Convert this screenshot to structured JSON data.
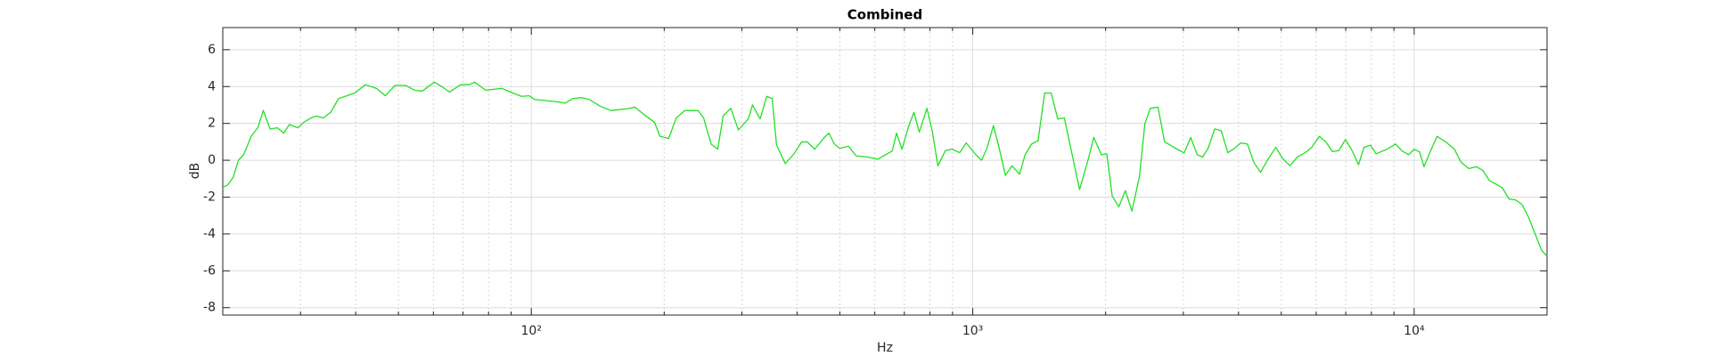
{
  "chart_data": {
    "type": "line",
    "title": "Combined",
    "xlabel": "Hz",
    "ylabel": "dB",
    "xscale": "log",
    "grid": true,
    "color": "#22e022",
    "xlim": [
      20,
      20000
    ],
    "ylim": [
      -8.4,
      7.2
    ],
    "xticks": [
      {
        "value": 100,
        "label": "10²"
      },
      {
        "value": 1000,
        "label": "10³"
      },
      {
        "value": 10000,
        "label": "10⁴"
      }
    ],
    "xminorticks": [
      30,
      40,
      50,
      60,
      70,
      80,
      90,
      200,
      300,
      400,
      500,
      600,
      700,
      800,
      900,
      2000,
      3000,
      4000,
      5000,
      6000,
      7000,
      8000,
      9000
    ],
    "yticks": [
      -8,
      -6,
      -4,
      -2,
      0,
      2,
      4,
      6
    ],
    "x": [
      20,
      20.5,
      21.1,
      21.7,
      22.3,
      23.2,
      24.0,
      24.7,
      25.6,
      26.6,
      27.5,
      28.3,
      29.6,
      30.5,
      31.7,
      32.6,
      33.8,
      35.1,
      36.6,
      38.2,
      39.8,
      42.1,
      44.6,
      46.7,
      49.1,
      52.0,
      54.4,
      56.6,
      60.3,
      62.7,
      65.3,
      69.1,
      72.3,
      74.4,
      78.8,
      85.8,
      90.8,
      95.0,
      98.9,
      101.7,
      107.7,
      114.0,
      119.3,
      124.1,
      129.9,
      135.2,
      143.1,
      151.4,
      165.0,
      171.7,
      179.6,
      190.1,
      195.6,
      204.7,
      213.0,
      222.9,
      238.7,
      245.6,
      255.5,
      264.4,
      272.0,
      283.1,
      294.5,
      310.0,
      317.1,
      329.9,
      341.4,
      351.3,
      359.4,
      376.1,
      393.6,
      409.6,
      421.4,
      438.5,
      458.9,
      472.2,
      485.8,
      499.8,
      523.0,
      544.3,
      576.2,
      610.0,
      656.9,
      672.0,
      691.3,
      715.2,
      735.9,
      756.9,
      787.6,
      810.3,
      833.7,
      867.6,
      897.6,
      934.1,
      966.5,
      1017,
      1047,
      1077,
      1114,
      1147,
      1186,
      1227,
      1277,
      1314,
      1359,
      1406,
      1455,
      1506,
      1558,
      1613,
      1688,
      1746,
      1827,
      1880,
      1956,
      2013,
      2070,
      2142,
      2217,
      2294,
      2386,
      2455,
      2526,
      2629,
      2720,
      2880,
      3013,
      3118,
      3226,
      3319,
      3414,
      3533,
      3656,
      3783,
      3892,
      4050,
      4191,
      4335,
      4486,
      4668,
      4858,
      5026,
      5230,
      5442,
      5663,
      5860,
      6099,
      6310,
      6528,
      6754,
      6988,
      7232,
      7482,
      7697,
      7964,
      8198,
      8677,
      9078,
      9393,
      9720,
      10000,
      10290,
      10525,
      10890,
      11270,
      11790,
      12340,
      12770,
      13290,
      13830,
      14310,
      14810,
      15320,
      15850,
      16400,
      16970,
      17560,
      18170,
      18800,
      19450,
      20000
    ],
    "values": [
      -1.47,
      -1.35,
      -0.94,
      0,
      0.3,
      1.3,
      1.76,
      2.7,
      1.7,
      1.76,
      1.47,
      1.94,
      1.76,
      2.06,
      2.3,
      2.4,
      2.3,
      2.6,
      3.35,
      3.5,
      3.65,
      4.1,
      3.9,
      3.5,
      4.06,
      4.06,
      3.8,
      3.75,
      4.24,
      4.0,
      3.7,
      4.1,
      4.1,
      4.24,
      3.8,
      3.9,
      3.65,
      3.47,
      3.5,
      3.3,
      3.24,
      3.18,
      3.1,
      3.35,
      3.4,
      3.3,
      2.94,
      2.7,
      2.8,
      2.88,
      2.5,
      2.06,
      1.3,
      1.18,
      2.3,
      2.7,
      2.7,
      2.3,
      0.88,
      0.6,
      2.4,
      2.82,
      1.65,
      2.24,
      3.0,
      2.24,
      3.47,
      3.35,
      0.82,
      -0.18,
      0.35,
      1.0,
      1.0,
      0.6,
      1.18,
      1.47,
      0.88,
      0.65,
      0.76,
      0.24,
      0.18,
      0.06,
      0.5,
      1.47,
      0.6,
      1.82,
      2.6,
      1.53,
      2.82,
      1.53,
      -0.3,
      0.53,
      0.6,
      0.41,
      0.94,
      0.3,
      0,
      0.65,
      1.88,
      0.7,
      -0.82,
      -0.3,
      -0.76,
      0.3,
      0.88,
      1.06,
      3.65,
      3.65,
      2.24,
      2.3,
      0.06,
      -1.59,
      0.06,
      1.24,
      0.3,
      0.35,
      -1.94,
      -2.53,
      -1.65,
      -2.76,
      -0.88,
      2.0,
      2.82,
      2.88,
      1.0,
      0.65,
      0.4,
      1.24,
      0.3,
      0.18,
      0.65,
      1.7,
      1.6,
      0.41,
      0.6,
      0.94,
      0.88,
      -0.12,
      -0.65,
      0.06,
      0.7,
      0.12,
      -0.3,
      0.18,
      0.41,
      0.7,
      1.3,
      1.0,
      0.47,
      0.53,
      1.12,
      0.53,
      -0.24,
      0.7,
      0.82,
      0.35,
      0.6,
      0.88,
      0.5,
      0.3,
      0.6,
      0.45,
      -0.35,
      0.5,
      1.3,
      1.0,
      0.6,
      -0.1,
      -0.45,
      -0.35,
      -0.55,
      -1.1,
      -1.3,
      -1.5,
      -2.1,
      -2.15,
      -2.4,
      -3.1,
      -4.0,
      -4.9,
      -5.2
    ]
  }
}
